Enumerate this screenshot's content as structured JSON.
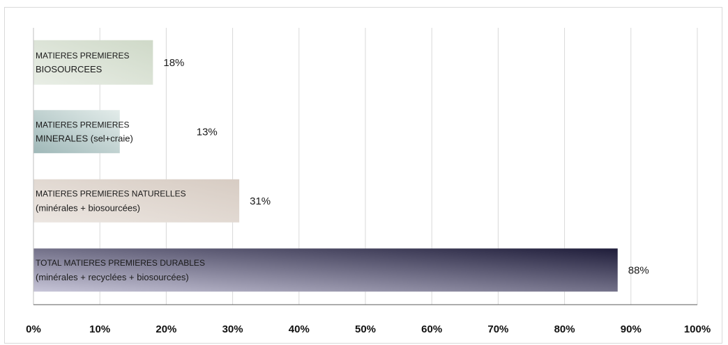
{
  "chart_data": {
    "type": "bar",
    "orientation": "horizontal",
    "title": "",
    "xlabel": "",
    "ylabel": "",
    "xlim": [
      0,
      100
    ],
    "grid": true,
    "legend": "none",
    "bars": [
      {
        "label_lines": [
          "MATIERES PREMIERES",
          "BIOSOURCEES"
        ],
        "value": 18,
        "value_label": "18%",
        "gradient": [
          "#e9eee6",
          "#cfd9c8"
        ]
      },
      {
        "label_lines": [
          "MATIERES PREMIERES",
          "MINERALES (sel+craie)"
        ],
        "value": 13,
        "value_label": "13%",
        "gradient": [
          "#9fb8b8",
          "#e3ecea"
        ]
      },
      {
        "label_lines": [
          "MATIERES PREMIERES NATURELLES",
          "(minérales + biosourcées)"
        ],
        "value": 31,
        "value_label": "31%",
        "gradient": [
          "#ece6e1",
          "#d7ccc3"
        ]
      },
      {
        "label_lines": [
          "TOTAL MATIERES PREMIERES DURABLES",
          "(minérales + recyclées + biosourcées)"
        ],
        "value": 88,
        "value_label": "88%",
        "gradient": [
          "#c7c5d8",
          "#1f1d3a"
        ]
      }
    ],
    "ticks": [
      {
        "value": 0,
        "label": "0%"
      },
      {
        "value": 10,
        "label": "10%"
      },
      {
        "value": 20,
        "label": "20%"
      },
      {
        "value": 30,
        "label": "30%"
      },
      {
        "value": 40,
        "label": "40%"
      },
      {
        "value": 50,
        "label": "50%"
      },
      {
        "value": 60,
        "label": "60%"
      },
      {
        "value": 70,
        "label": "70%"
      },
      {
        "value": 80,
        "label": "80%"
      },
      {
        "value": 90,
        "label": "90%"
      },
      {
        "value": 100,
        "label": "100%"
      }
    ]
  }
}
